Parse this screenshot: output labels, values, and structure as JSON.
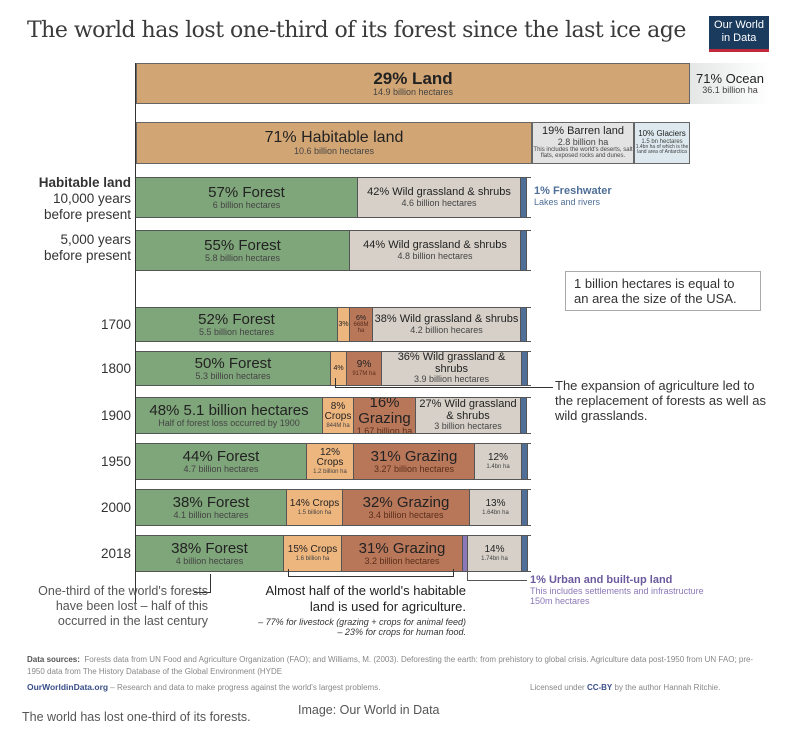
{
  "header": {
    "title": "The world has lost one-third of its forest since the last ice age",
    "logo_line1": "Our World",
    "logo_line2": "in Data"
  },
  "colors": {
    "land": "#d2a574",
    "ocean": "#e4e7e6",
    "barren": "#e3e3e3",
    "glaciers": "#dde9ee",
    "forest": "#7fa57a",
    "grassland": "#d6d0c8",
    "freshwater": "#4f6f98",
    "crops": "#eeb67f",
    "grazing": "#b9775a",
    "urban": "#8a78b8",
    "logo_bg": "#1a3a5e",
    "logo_accent": "#c0283c"
  },
  "chart_data": {
    "type": "bar",
    "orientation": "horizontal-stacked",
    "title": "The world has lost one-third of its forest since the last ice age",
    "top_level": [
      {
        "name": "Land",
        "pct": 29,
        "label": "29% Land",
        "sub": "14.9 billion hectares"
      },
      {
        "name": "Ocean",
        "pct": 71,
        "label": "71% Ocean",
        "sub": "36.1 billion ha"
      }
    ],
    "land_breakdown": [
      {
        "name": "Habitable land",
        "pct": 71,
        "label": "71% Habitable land",
        "sub": "10.6 billion hectares"
      },
      {
        "name": "Barren land",
        "pct": 19,
        "label": "19% Barren land",
        "sub": "2.8 billion ha",
        "note": "This includes the world's deserts, salt flats, exposed rocks and dunes."
      },
      {
        "name": "Glaciers",
        "pct": 10,
        "label": "10% Glaciers",
        "sub": "1.5 bn hectares",
        "note": "1.4bn ha of which is the land area of Antarctica"
      }
    ],
    "categories": [
      "10,000 years before present",
      "5,000 years before present",
      "1700",
      "1800",
      "1900",
      "1950",
      "2000",
      "2018"
    ],
    "series": [
      {
        "name": "Forest",
        "values": [
          57,
          55,
          52,
          50,
          48,
          44,
          38,
          38
        ]
      },
      {
        "name": "Crops",
        "values": [
          0,
          0,
          3,
          4,
          8,
          12,
          14,
          15
        ]
      },
      {
        "name": "Grazing",
        "values": [
          0,
          0,
          6,
          9,
          16,
          31,
          32,
          31
        ]
      },
      {
        "name": "Urban",
        "values": [
          0,
          0,
          0,
          0,
          0,
          0,
          0,
          1
        ]
      },
      {
        "name": "Wild grassland & shrubs",
        "values": [
          42,
          44,
          38,
          36,
          27,
          12,
          13,
          14
        ]
      },
      {
        "name": "Freshwater",
        "values": [
          1,
          1,
          1,
          1,
          1,
          1,
          1,
          1
        ]
      }
    ],
    "rows": [
      {
        "label_bold": "Habitable land",
        "label": "10,000 years",
        "label2": "before present",
        "segs": [
          {
            "type": "forest",
            "pct": 57,
            "l1": "57% Forest",
            "l2": "6 billion hectares"
          },
          {
            "type": "grassland",
            "pct": 42,
            "l1": "42% Wild grassland & shrubs",
            "l2": "4.6 billion hectares"
          },
          {
            "type": "freshwater",
            "pct": 1,
            "l1": "",
            "l2": ""
          }
        ]
      },
      {
        "label_bold": "",
        "label": "5,000 years",
        "label2": "before present",
        "segs": [
          {
            "type": "forest",
            "pct": 55,
            "l1": "55% Forest",
            "l2": "5.8 billion hectares"
          },
          {
            "type": "grassland",
            "pct": 44,
            "l1": "44% Wild grassland & shrubs",
            "l2": "4.8 billion hectares"
          },
          {
            "type": "freshwater",
            "pct": 1,
            "l1": "",
            "l2": ""
          }
        ]
      },
      {
        "label_bold": "",
        "label": "1700",
        "label2": "",
        "segs": [
          {
            "type": "forest",
            "pct": 52,
            "l1": "52% Forest",
            "l2": "5.5 billion hectares"
          },
          {
            "type": "crops",
            "pct": 3,
            "l1": "3%",
            "l2": ""
          },
          {
            "type": "grazing",
            "pct": 6,
            "l1": "6%",
            "l2": "668M ha"
          },
          {
            "type": "grassland",
            "pct": 38,
            "l1": "38% Wild grassland & shrubs",
            "l2": "4.2 billion hecares"
          },
          {
            "type": "freshwater",
            "pct": 1,
            "l1": "",
            "l2": ""
          }
        ]
      },
      {
        "label_bold": "",
        "label": "1800",
        "label2": "",
        "segs": [
          {
            "type": "forest",
            "pct": 50,
            "l1": "50% Forest",
            "l2": "5.3 billion hectares"
          },
          {
            "type": "crops",
            "pct": 4,
            "l1": "4%",
            "l2": ""
          },
          {
            "type": "grazing",
            "pct": 9,
            "l1": "9%",
            "l2": "917M ha"
          },
          {
            "type": "grassland",
            "pct": 36,
            "l1": "36% Wild grassland & shrubs",
            "l2": "3.9 billion hectares"
          },
          {
            "type": "freshwater",
            "pct": 1,
            "l1": "",
            "l2": ""
          }
        ]
      },
      {
        "label_bold": "",
        "label": "1900",
        "label2": "",
        "segs": [
          {
            "type": "forest",
            "pct": 48,
            "l1": "48%  5.1 billion hectares",
            "l2": "Half of forest loss occurred by 1900"
          },
          {
            "type": "crops",
            "pct": 8,
            "l1": "8% Crops",
            "l2": "844M ha"
          },
          {
            "type": "grazing",
            "pct": 16,
            "l1": "16% Grazing",
            "l2": "1.67 billion ha"
          },
          {
            "type": "grassland",
            "pct": 27,
            "l1": "27% Wild grassland & shrubs",
            "l2": "3 billion hectares"
          },
          {
            "type": "freshwater",
            "pct": 1,
            "l1": "",
            "l2": ""
          }
        ]
      },
      {
        "label_bold": "",
        "label": "1950",
        "label2": "",
        "segs": [
          {
            "type": "forest",
            "pct": 44,
            "l1": "44% Forest",
            "l2": "4.7 billion hectares"
          },
          {
            "type": "crops",
            "pct": 12,
            "l1": "12% Crops",
            "l2": "1.2 billion ha"
          },
          {
            "type": "grazing",
            "pct": 31,
            "l1": "31% Grazing",
            "l2": "3.27 billion hectares"
          },
          {
            "type": "grassland",
            "pct": 12,
            "l1": "12%",
            "l2": "1.4bn ha"
          },
          {
            "type": "freshwater",
            "pct": 1,
            "l1": "",
            "l2": ""
          }
        ]
      },
      {
        "label_bold": "",
        "label": "2000",
        "label2": "",
        "segs": [
          {
            "type": "forest",
            "pct": 38,
            "l1": "38% Forest",
            "l2": "4.1 billion hectares"
          },
          {
            "type": "crops",
            "pct": 14,
            "l1": "14% Crops",
            "l2": "1.5 billion ha"
          },
          {
            "type": "grazing",
            "pct": 32,
            "l1": "32% Grazing",
            "l2": "3.4 billion hectares"
          },
          {
            "type": "grassland",
            "pct": 13,
            "l1": "13%",
            "l2": "1.64bn ha"
          },
          {
            "type": "freshwater",
            "pct": 1,
            "l1": "",
            "l2": ""
          }
        ]
      },
      {
        "label_bold": "",
        "label": "2018",
        "label2": "",
        "segs": [
          {
            "type": "forest",
            "pct": 38,
            "l1": "38% Forest",
            "l2": "4 billion hectares"
          },
          {
            "type": "crops",
            "pct": 15,
            "l1": "15% Crops",
            "l2": "1.6 billion ha"
          },
          {
            "type": "grazing",
            "pct": 31,
            "l1": "31% Grazing",
            "l2": "3.2 billion hectares"
          },
          {
            "type": "urban",
            "pct": 1,
            "l1": "",
            "l2": ""
          },
          {
            "type": "grassland",
            "pct": 14,
            "l1": "14%",
            "l2": "1.74bn ha"
          },
          {
            "type": "freshwater",
            "pct": 1,
            "l1": "",
            "l2": ""
          }
        ]
      }
    ]
  },
  "annotations": {
    "freshwater_title": "1% Freshwater",
    "freshwater_sub": "Lakes and rivers",
    "usa_note": "1 billion hectares is equal to an area the size of the USA.",
    "expansion_note": "The expansion of agriculture led to the replacement of forests as well as wild grasslands.",
    "forest_loss_note": "One-third of the world's forests have been lost – half of this occurred in the last century",
    "agri_note_main": "Almost half of the world's habitable land is used for agriculture.",
    "agri_note_sub1": "– 77% for livestock (grazing + crops for animal feed)",
    "agri_note_sub2": "– 23% for crops for human food.",
    "urban_title": "1% Urban and built-up land",
    "urban_sub1": "This includes settlements and infrastructure",
    "urban_sub2": "150m hectares"
  },
  "footer": {
    "sources_label": "Data sources:",
    "sources_text": "Forests data from UN Food and Agriculture Organization (FAO); and Williams, M. (2003). Deforesting the earth: from prehistory to global crisis. Agriculture data post-1950 from UN FAO; pre-1950 data from The History Database of the Global Environment (HYDE",
    "owid_link": "OurWorldinData.org",
    "owid_tagline": " – Research and data to make progress against the world's largest problems.",
    "license_prefix": "Licensed under ",
    "license_link": "CC-BY",
    "license_suffix": " by the author Hannah Ritchie."
  },
  "caption": {
    "text": "The world has lost one-third of its forests.",
    "credit": "Image: Our World in Data"
  }
}
